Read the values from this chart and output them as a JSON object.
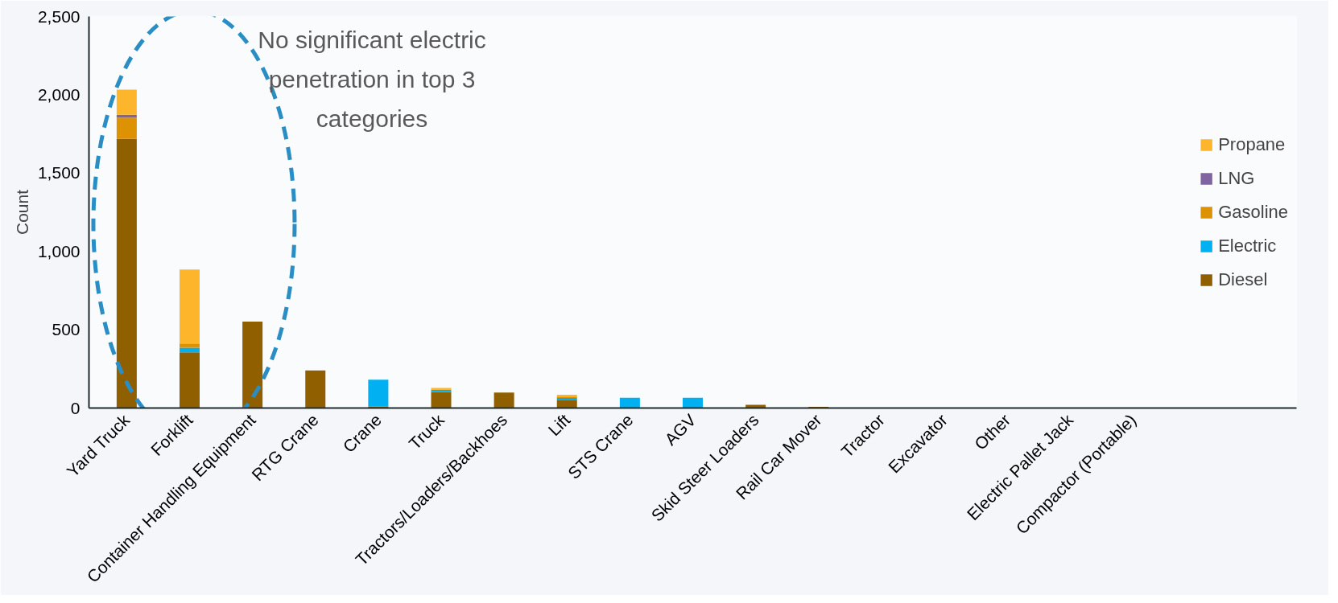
{
  "chart_data": {
    "type": "bar",
    "stacked": true,
    "ylabel": "Count",
    "categories": [
      "Yard Truck",
      "Forklift",
      "Container Handling Equipment",
      "RTG Crane",
      "Crane",
      "Truck",
      "Tractors/Loaders/Backhoes",
      "Lift",
      "STS Crane",
      "AGV",
      "Skid Steer Loaders",
      "Rail Car Mover",
      "Tractor",
      "Excavator",
      "Other",
      "Electric Pallet Jack",
      "Compactor (Portable)"
    ],
    "series": [
      {
        "name": "Diesel",
        "color": "#8f5f00",
        "values": [
          1718,
          356,
          552,
          240,
          9,
          102,
          99,
          52,
          0,
          0,
          21,
          8,
          0,
          0,
          0,
          0,
          0
        ]
      },
      {
        "name": "Electric",
        "color": "#00b0f0",
        "values": [
          0,
          29,
          0,
          0,
          172,
          14,
          0,
          12,
          66,
          66,
          0,
          0,
          0,
          0,
          0,
          0,
          0
        ]
      },
      {
        "name": "Gasoline",
        "color": "#dc9203",
        "values": [
          136,
          27,
          0,
          0,
          0,
          0,
          0,
          9,
          0,
          0,
          0,
          0,
          0,
          0,
          0,
          0,
          0
        ]
      },
      {
        "name": "LNG",
        "color": "#8064a2",
        "values": [
          18,
          0,
          0,
          0,
          0,
          0,
          0,
          0,
          0,
          0,
          0,
          0,
          0,
          0,
          0,
          0,
          0
        ]
      },
      {
        "name": "Propane",
        "color": "#fdb62b",
        "values": [
          161,
          472,
          0,
          0,
          0,
          12,
          0,
          12,
          0,
          0,
          0,
          0,
          0,
          0,
          0,
          0,
          0
        ]
      }
    ],
    "ylim": [
      0,
      2500
    ],
    "yticks": [
      0,
      500,
      {
        "value": 1000,
        "label": "1,000"
      },
      {
        "value": 1500,
        "label": "1,500"
      },
      {
        "value": 2000,
        "label": "2,000"
      },
      {
        "value": 2500,
        "label": "2,500"
      }
    ],
    "annotations": [
      "No significant electric penetration in top 3 categories"
    ],
    "grid": false,
    "legend": "right"
  }
}
